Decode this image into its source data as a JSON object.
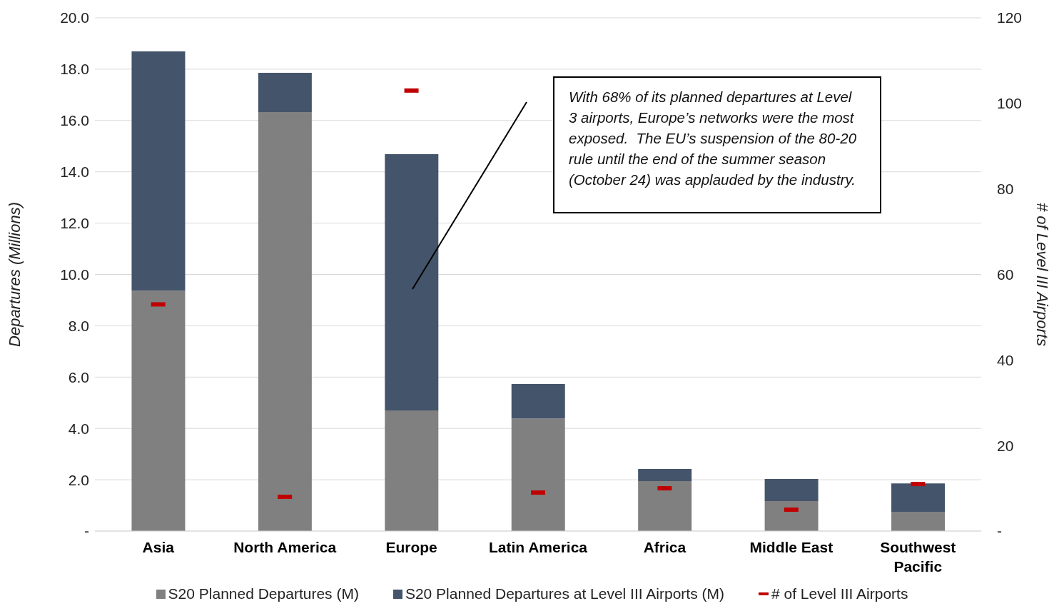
{
  "chart_data": {
    "type": "bar",
    "stacked": true,
    "categories": [
      "Asia",
      "North America",
      "Europe",
      "Latin America",
      "Africa",
      "Middle East",
      "Southwest Pacific"
    ],
    "series": [
      {
        "name": "S20 Planned Departures (M)",
        "color": "#808080",
        "values": [
          9.37,
          16.33,
          4.7,
          4.39,
          1.95,
          1.17,
          0.75
        ]
      },
      {
        "name": "S20 Planned Departures at Level III Airports (M)",
        "color": "#44546a",
        "values": [
          9.32,
          1.53,
          9.99,
          1.34,
          0.47,
          0.86,
          1.11
        ]
      },
      {
        "name": "# of Level III Airports",
        "type": "scatter",
        "axis": "y2",
        "color": "#c00000",
        "values": [
          53,
          8,
          103,
          9,
          10,
          5,
          11
        ]
      }
    ],
    "ylabel": "Departures (Millions)",
    "y2label": "# of Level III Airports",
    "ylim": [
      0,
      20
    ],
    "yticks": [
      {
        "value": 0,
        "label": "-"
      },
      {
        "value": 2,
        "label": "2.0"
      },
      {
        "value": 4,
        "label": "4.0"
      },
      {
        "value": 6,
        "label": "6.0"
      },
      {
        "value": 8,
        "label": "8.0"
      },
      {
        "value": 10,
        "label": "10.0"
      },
      {
        "value": 12,
        "label": "12.0"
      },
      {
        "value": 14,
        "label": "14.0"
      },
      {
        "value": 16,
        "label": "16.0"
      },
      {
        "value": 18,
        "label": "18.0"
      },
      {
        "value": 20,
        "label": "20.0"
      }
    ],
    "y2lim": [
      0,
      120
    ],
    "y2ticks": [
      {
        "value": 0,
        "label": "-"
      },
      20,
      40,
      60,
      80,
      100,
      120
    ],
    "grid": "y",
    "legend": "bottom",
    "annotations": [
      "With 68% of its planned departures at Level 3 airports, Europe’s networks were the most exposed.  The EU’s suspension of the 80-20 rule until the end of the summer season (October 24) was applauded by the industry."
    ]
  }
}
